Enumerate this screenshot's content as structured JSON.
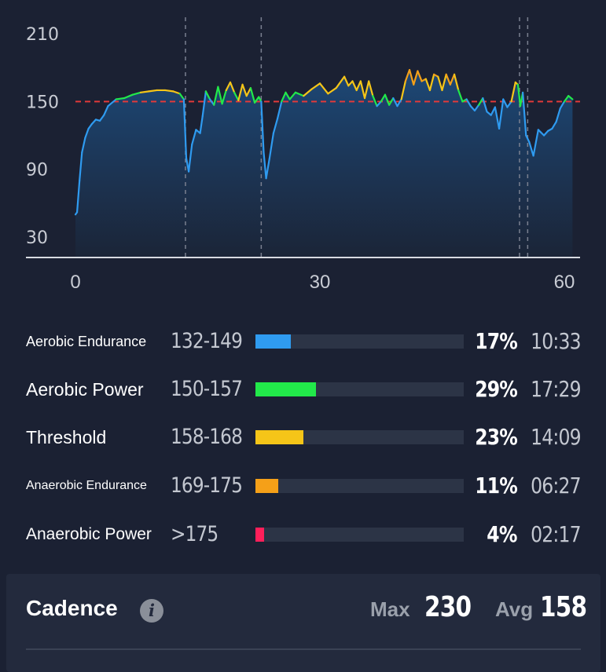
{
  "chart_data": {
    "type": "area",
    "y_ticks": [
      "210",
      "150",
      "90",
      "30"
    ],
    "x_ticks": [
      "0",
      "30",
      "60"
    ],
    "xlim": [
      0,
      60
    ],
    "ylim": [
      20,
      220
    ],
    "threshold_line": 150,
    "markers": [
      13.5,
      22.8,
      54.5,
      55.5
    ],
    "x": [
      0,
      0.2,
      0.5,
      0.8,
      1.2,
      1.6,
      2.0,
      2.5,
      3.0,
      3.5,
      4.0,
      5.0,
      6.0,
      7.0,
      8.0,
      9.0,
      10.0,
      11.0,
      12.0,
      12.8,
      13.3,
      13.6,
      13.9,
      14.3,
      14.8,
      15.3,
      15.6,
      16.0,
      16.5,
      17.0,
      17.5,
      18.0,
      18.5,
      19.0,
      19.5,
      20.0,
      20.5,
      21.0,
      21.5,
      22.0,
      22.5,
      22.8,
      23.1,
      23.4,
      23.8,
      24.3,
      24.8,
      25.3,
      25.8,
      26.3,
      27.0,
      28.0,
      29.0,
      30.0,
      31.0,
      32.0,
      33.0,
      33.5,
      34.0,
      34.5,
      35.0,
      35.5,
      36.0,
      36.5,
      37.0,
      37.5,
      38.0,
      38.5,
      39.0,
      39.5,
      40.0,
      40.5,
      41.0,
      41.5,
      42.0,
      42.5,
      43.0,
      43.5,
      44.0,
      44.5,
      45.0,
      45.5,
      46.0,
      46.5,
      47.0,
      47.5,
      48.0,
      48.5,
      49.0,
      49.5,
      50.0,
      50.5,
      51.0,
      51.5,
      52.0,
      52.5,
      53.0,
      53.5,
      54.0,
      54.3,
      54.6,
      54.9,
      55.3,
      55.7,
      56.2,
      56.8,
      57.5,
      58.0,
      58.5,
      59.0,
      59.5,
      60.0,
      60.5,
      61.0
    ],
    "values": [
      50,
      52,
      80,
      105,
      118,
      126,
      130,
      134,
      133,
      138,
      146,
      152,
      153,
      156,
      158,
      159,
      160,
      160,
      159,
      157,
      152,
      100,
      88,
      112,
      125,
      122,
      137,
      159,
      152,
      147,
      163,
      148,
      160,
      167,
      158,
      151,
      165,
      155,
      162,
      149,
      154,
      150,
      105,
      82,
      99,
      122,
      135,
      150,
      158,
      152,
      158,
      155,
      161,
      166,
      157,
      162,
      172,
      164,
      168,
      160,
      168,
      153,
      168,
      155,
      146,
      150,
      156,
      147,
      153,
      146,
      152,
      168,
      178,
      165,
      177,
      168,
      170,
      160,
      174,
      172,
      160,
      174,
      165,
      174,
      160,
      150,
      152,
      146,
      142,
      147,
      153,
      141,
      138,
      145,
      126,
      152,
      145,
      150,
      167,
      165,
      146,
      158,
      120,
      114,
      102,
      125,
      120,
      124,
      126,
      132,
      144,
      150,
      155,
      152
    ]
  },
  "zones": [
    {
      "name": "Aerobic Endurance",
      "range": "132-149",
      "percent_label": "17%",
      "fraction": 0.17,
      "time": "10:33",
      "color": "#2f9bf0",
      "size": "small"
    },
    {
      "name": "Aerobic Power",
      "range": "150-157",
      "percent_label": "29%",
      "fraction": 0.29,
      "time": "17:29",
      "color": "#22e84a",
      "size": "large"
    },
    {
      "name": "Threshold",
      "range": "158-168",
      "percent_label": "23%",
      "fraction": 0.23,
      "time": "14:09",
      "color": "#f5c518",
      "size": "large"
    },
    {
      "name": "Anaerobic Endurance",
      "range": "169-175",
      "percent_label": "11%",
      "fraction": 0.11,
      "time": "06:27",
      "color": "#f5a018",
      "size": "tiny"
    },
    {
      "name": "Anaerobic Power",
      "range": ">175",
      "percent_label": "4%",
      "fraction": 0.04,
      "time": "02:17",
      "color": "#ff1f5a",
      "size": "medium"
    }
  ],
  "cadence": {
    "title": "Cadence",
    "info_icon": "info-icon",
    "max_label": "Max",
    "max_value": "230",
    "avg_label": "Avg",
    "avg_value": "158"
  },
  "colors": {
    "background": "#1b2133",
    "threshold_line": "#e23a3a",
    "line_low": "#2f9bf0",
    "line_zone2": "#22e84a",
    "line_zone3": "#f5c518",
    "line_zone4": "#f5a018",
    "line_zone5": "#ff1f5a"
  }
}
